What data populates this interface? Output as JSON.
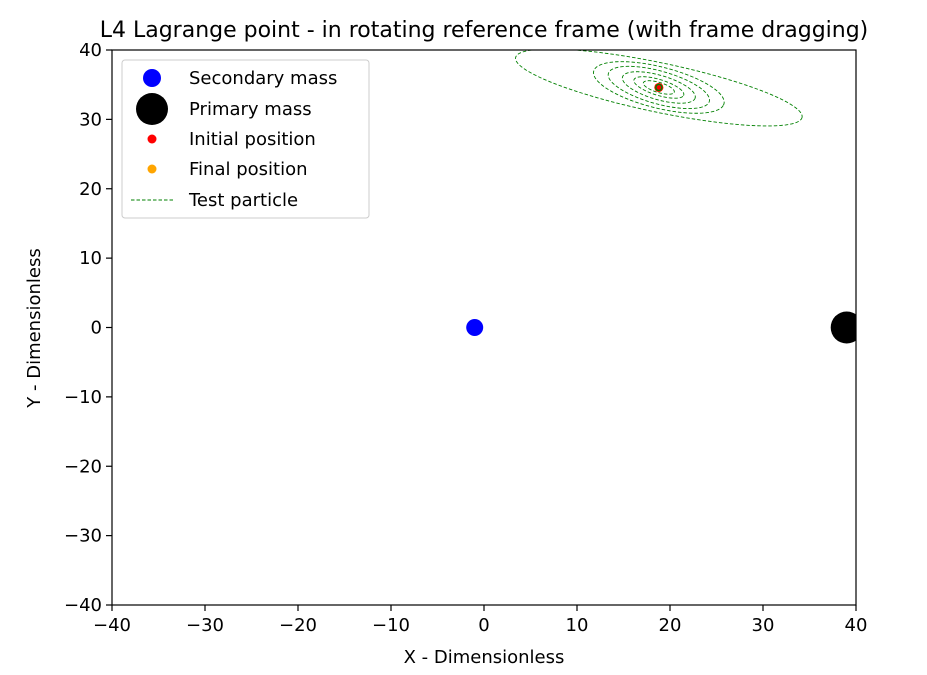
{
  "chart_data": {
    "type": "scatter",
    "title": "L4 Lagrange point - in rotating reference frame (with frame dragging)",
    "xlabel": "X - Dimensionless",
    "ylabel": "Y - Dimensionless",
    "xlim": [
      -40,
      40
    ],
    "ylim": [
      -40,
      40
    ],
    "x_ticks": [
      -40,
      -30,
      -20,
      -10,
      0,
      10,
      20,
      30,
      40
    ],
    "y_ticks": [
      -40,
      -30,
      -20,
      -10,
      0,
      10,
      20,
      30,
      40
    ],
    "x_tick_labels": [
      "−40",
      "−30",
      "−20",
      "−10",
      "0",
      "10",
      "20",
      "30",
      "40"
    ],
    "y_tick_labels": [
      "−40",
      "−30",
      "−20",
      "−10",
      "0",
      "10",
      "20",
      "30",
      "40"
    ],
    "grid": false,
    "legend_position": "upper-left",
    "series": [
      {
        "name": "Secondary mass",
        "kind": "marker",
        "color": "#0000ff",
        "x": -1,
        "y": 0
      },
      {
        "name": "Primary mass",
        "kind": "marker",
        "color": "#000000",
        "x": 39,
        "y": 0
      },
      {
        "name": "Initial position",
        "kind": "marker",
        "color": "#ff0000",
        "x": 18.8,
        "y": 34.6
      },
      {
        "name": "Final position",
        "kind": "marker",
        "color": "#ffa500",
        "x": 18.8,
        "y": 34.6
      },
      {
        "name": "Test particle",
        "kind": "dashed-line",
        "color": "#008000",
        "center": [
          18.8,
          34.6
        ],
        "loops": [
          {
            "a": 16,
            "b": 3.5,
            "rot_deg": -16
          },
          {
            "a": 7.4,
            "b": 2.9,
            "rot_deg": -20
          },
          {
            "a": 5.8,
            "b": 2.3,
            "rot_deg": -22
          },
          {
            "a": 4.2,
            "b": 1.7,
            "rot_deg": -23
          },
          {
            "a": 2.9,
            "b": 1.1,
            "rot_deg": -24
          },
          {
            "a": 1.8,
            "b": 0.7,
            "rot_deg": -24
          }
        ]
      }
    ]
  }
}
